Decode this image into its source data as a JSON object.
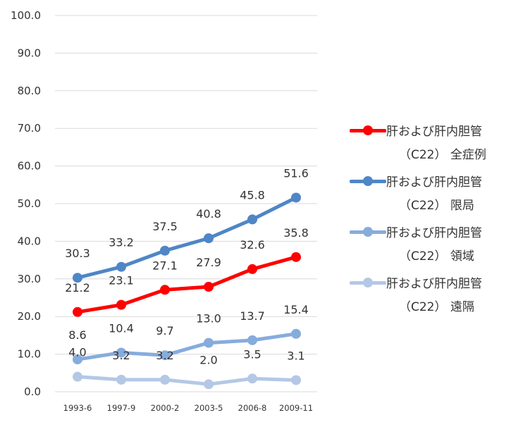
{
  "chart_data": {
    "type": "line",
    "categories": [
      "1993-6",
      "1997-9",
      "2000-2",
      "2003-5",
      "2006-8",
      "2009-11"
    ],
    "ylim": [
      0,
      100
    ],
    "yticks": [
      "0.0",
      "10.0",
      "20.0",
      "30.0",
      "40.0",
      "50.0",
      "60.0",
      "70.0",
      "80.0",
      "90.0",
      "100.0"
    ],
    "grid": true,
    "legend_position": "right",
    "series": [
      {
        "name_line1": "肝および肝内胆管",
        "name_line2": "（C22） 全症例",
        "color": "#ff0000",
        "values": [
          21.2,
          23.1,
          27.1,
          27.9,
          32.6,
          35.8
        ],
        "labels": [
          "21.2",
          "23.1",
          "27.1",
          "27.9",
          "32.6",
          "35.8"
        ]
      },
      {
        "name_line1": "肝および肝内胆管",
        "name_line2": "（C22） 限局",
        "color": "#4f86c6",
        "values": [
          30.3,
          33.2,
          37.5,
          40.8,
          45.8,
          51.6
        ],
        "labels": [
          "30.3",
          "33.2",
          "37.5",
          "40.8",
          "45.8",
          "51.6"
        ]
      },
      {
        "name_line1": "肝および肝内胆管",
        "name_line2": "（C22） 領域",
        "color": "#86acdc",
        "values": [
          8.6,
          10.4,
          9.7,
          13.0,
          13.7,
          15.4
        ],
        "labels": [
          "8.6",
          "10.4",
          "9.7",
          "13.0",
          "13.7",
          "15.4"
        ]
      },
      {
        "name_line1": "肝および肝内胆管",
        "name_line2": "（C22） 遠隔",
        "color": "#b4c8e6",
        "values": [
          4.0,
          3.2,
          3.2,
          2.0,
          3.5,
          3.1
        ],
        "labels": [
          "4.0",
          "3.2",
          "3.2",
          "2.0",
          "3.5",
          "3.1"
        ]
      }
    ]
  }
}
